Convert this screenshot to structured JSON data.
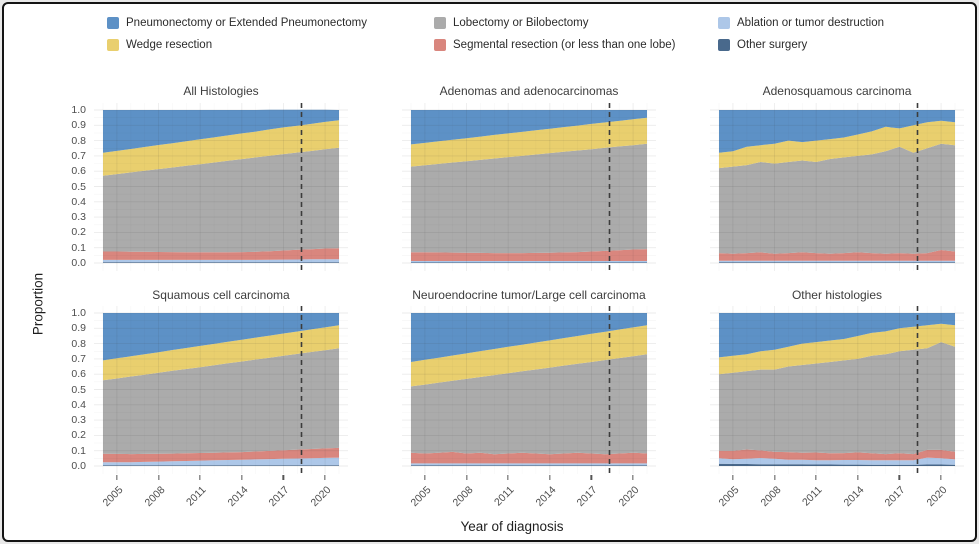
{
  "figure": {
    "background": "#ffffff",
    "border_color": "#141414"
  },
  "legend": {
    "items": [
      {
        "label": "Pneumonectomy or Extended Pneumonectomy",
        "color": "#5d91c6",
        "series": "pneumonectomy"
      },
      {
        "label": "Lobectomy or Bilobectomy",
        "color": "#ababab",
        "series": "lobectomy"
      },
      {
        "label": "Ablation or tumor destruction",
        "color": "#adc7e8",
        "series": "ablation"
      },
      {
        "label": "Wedge resection",
        "color": "#e9cf6e",
        "series": "wedge"
      },
      {
        "label": "Segmental resection (or less than one lobe)",
        "color": "#d9867e",
        "series": "segmental"
      },
      {
        "label": "Other surgery",
        "color": "#49698c",
        "series": "other_surgery"
      }
    ]
  },
  "axes": {
    "y_label": "Proportion",
    "x_label": "Year of diagnosis",
    "y_ticks": [
      "1.0",
      "0.9",
      "0.8",
      "0.7",
      "0.6",
      "0.5",
      "0.4",
      "0.3",
      "0.2",
      "0.1",
      "0.0"
    ],
    "x_ticks": [
      "2005",
      "2008",
      "2011",
      "2014",
      "2017",
      "2020"
    ]
  },
  "chart_data": {
    "type": "area",
    "stacked": true,
    "grid": true,
    "legend_position": "top",
    "ylim": [
      0,
      1
    ],
    "ylabel": "Proportion",
    "xlabel": "Year of diagnosis",
    "x": [
      2004,
      2005,
      2006,
      2007,
      2008,
      2009,
      2010,
      2011,
      2012,
      2013,
      2014,
      2015,
      2016,
      2017,
      2018,
      2019,
      2020,
      2021
    ],
    "x_tick_years": [
      2005,
      2008,
      2011,
      2014,
      2017,
      2020
    ],
    "dashed_line_year": 2018.3,
    "dashed_line_color": "#3c3c3c",
    "stack_order": [
      "other_surgery",
      "ablation",
      "segmental",
      "lobectomy",
      "wedge",
      "pneumonectomy"
    ],
    "series_labels": {
      "other_surgery": "Other surgery",
      "ablation": "Ablation or tumor destruction",
      "segmental": "Segmental resection (or less than one lobe)",
      "lobectomy": "Lobectomy or Bilobectomy",
      "wedge": "Wedge resection",
      "pneumonectomy": "Pneumonectomy or Extended Pneumonectomy"
    },
    "series_colors": {
      "other_surgery": "#49698c",
      "ablation": "#adc7e8",
      "segmental": "#d9867e",
      "lobectomy": "#ababab",
      "wedge": "#e9cf6e",
      "pneumonectomy": "#5d91c6"
    },
    "panels": [
      {
        "title": "All Histologies",
        "series": {
          "other_surgery": [
            0.005,
            0.005,
            0.005,
            0.005,
            0.005,
            0.005,
            0.005,
            0.005,
            0.005,
            0.005,
            0.005,
            0.005,
            0.005,
            0.005,
            0.005,
            0.005,
            0.005,
            0.005
          ],
          "ablation": [
            0.015,
            0.015,
            0.015,
            0.015,
            0.015,
            0.015,
            0.015,
            0.015,
            0.015,
            0.015,
            0.015,
            0.015,
            0.016,
            0.017,
            0.018,
            0.019,
            0.02,
            0.02
          ],
          "segmental": [
            0.055,
            0.055,
            0.054,
            0.053,
            0.052,
            0.051,
            0.05,
            0.05,
            0.05,
            0.05,
            0.051,
            0.053,
            0.056,
            0.06,
            0.063,
            0.066,
            0.07,
            0.072
          ],
          "lobectomy": [
            0.495,
            0.506,
            0.518,
            0.53,
            0.542,
            0.553,
            0.565,
            0.576,
            0.587,
            0.598,
            0.608,
            0.617,
            0.624,
            0.63,
            0.636,
            0.642,
            0.648,
            0.656
          ],
          "wedge": [
            0.15,
            0.152,
            0.153,
            0.155,
            0.157,
            0.159,
            0.161,
            0.163,
            0.164,
            0.166,
            0.168,
            0.169,
            0.172,
            0.174,
            0.175,
            0.177,
            0.179,
            0.18
          ],
          "pneumonectomy": [
            0.28,
            0.267,
            0.255,
            0.242,
            0.229,
            0.217,
            0.204,
            0.191,
            0.179,
            0.166,
            0.153,
            0.141,
            0.128,
            0.115,
            0.104,
            0.092,
            0.079,
            0.067
          ]
        }
      },
      {
        "title": "Adenomas and adenocarcinomas",
        "series": {
          "other_surgery": [
            0.003,
            0.003,
            0.003,
            0.003,
            0.003,
            0.003,
            0.003,
            0.003,
            0.003,
            0.003,
            0.003,
            0.003,
            0.003,
            0.003,
            0.003,
            0.003,
            0.003,
            0.003
          ],
          "ablation": [
            0.01,
            0.01,
            0.01,
            0.01,
            0.01,
            0.01,
            0.01,
            0.01,
            0.01,
            0.01,
            0.01,
            0.01,
            0.01,
            0.01,
            0.01,
            0.01,
            0.01,
            0.01
          ],
          "segmental": [
            0.057,
            0.057,
            0.056,
            0.055,
            0.054,
            0.053,
            0.052,
            0.052,
            0.052,
            0.053,
            0.054,
            0.056,
            0.058,
            0.062,
            0.066,
            0.07,
            0.075,
            0.078
          ],
          "lobectomy": [
            0.56,
            0.569,
            0.579,
            0.589,
            0.598,
            0.608,
            0.618,
            0.627,
            0.635,
            0.643,
            0.651,
            0.658,
            0.664,
            0.669,
            0.674,
            0.679,
            0.682,
            0.689
          ],
          "wedge": [
            0.145,
            0.146,
            0.148,
            0.149,
            0.151,
            0.152,
            0.154,
            0.155,
            0.157,
            0.159,
            0.16,
            0.161,
            0.163,
            0.165,
            0.166,
            0.167,
            0.17,
            0.17
          ],
          "pneumonectomy": [
            0.225,
            0.215,
            0.204,
            0.194,
            0.184,
            0.174,
            0.163,
            0.153,
            0.143,
            0.132,
            0.122,
            0.112,
            0.102,
            0.091,
            0.081,
            0.071,
            0.06,
            0.05
          ]
        }
      },
      {
        "title": "Adenosquamous carcinoma",
        "series": {
          "other_surgery": [
            0.005,
            0.005,
            0.005,
            0.005,
            0.005,
            0.005,
            0.005,
            0.005,
            0.005,
            0.005,
            0.005,
            0.005,
            0.005,
            0.005,
            0.005,
            0.005,
            0.005,
            0.005
          ],
          "ablation": [
            0.01,
            0.01,
            0.01,
            0.01,
            0.01,
            0.01,
            0.01,
            0.01,
            0.01,
            0.01,
            0.01,
            0.01,
            0.01,
            0.01,
            0.01,
            0.01,
            0.01,
            0.01
          ],
          "segmental": [
            0.05,
            0.045,
            0.05,
            0.055,
            0.045,
            0.05,
            0.055,
            0.05,
            0.045,
            0.05,
            0.055,
            0.05,
            0.045,
            0.05,
            0.045,
            0.05,
            0.07,
            0.06
          ],
          "lobectomy": [
            0.555,
            0.57,
            0.575,
            0.59,
            0.59,
            0.595,
            0.6,
            0.595,
            0.62,
            0.625,
            0.63,
            0.645,
            0.67,
            0.695,
            0.66,
            0.685,
            0.695,
            0.695
          ],
          "wedge": [
            0.1,
            0.1,
            0.12,
            0.11,
            0.13,
            0.14,
            0.12,
            0.14,
            0.13,
            0.13,
            0.14,
            0.15,
            0.16,
            0.12,
            0.18,
            0.17,
            0.15,
            0.15
          ],
          "pneumonectomy": [
            0.28,
            0.27,
            0.24,
            0.23,
            0.22,
            0.2,
            0.21,
            0.2,
            0.19,
            0.18,
            0.16,
            0.14,
            0.11,
            0.12,
            0.1,
            0.08,
            0.07,
            0.08
          ]
        }
      },
      {
        "title": "Squamous cell carcinoma",
        "series": {
          "other_surgery": [
            0.005,
            0.005,
            0.005,
            0.005,
            0.005,
            0.005,
            0.005,
            0.005,
            0.005,
            0.005,
            0.005,
            0.005,
            0.005,
            0.005,
            0.005,
            0.005,
            0.005,
            0.005
          ],
          "ablation": [
            0.02,
            0.02,
            0.02,
            0.022,
            0.024,
            0.026,
            0.028,
            0.03,
            0.032,
            0.034,
            0.036,
            0.038,
            0.04,
            0.042,
            0.044,
            0.046,
            0.048,
            0.05
          ],
          "segmental": [
            0.055,
            0.054,
            0.053,
            0.052,
            0.051,
            0.05,
            0.05,
            0.05,
            0.05,
            0.05,
            0.05,
            0.052,
            0.054,
            0.056,
            0.058,
            0.06,
            0.062,
            0.063
          ],
          "lobectomy": [
            0.48,
            0.493,
            0.507,
            0.518,
            0.529,
            0.541,
            0.551,
            0.561,
            0.572,
            0.582,
            0.592,
            0.601,
            0.609,
            0.617,
            0.626,
            0.634,
            0.642,
            0.652
          ],
          "wedge": [
            0.13,
            0.132,
            0.132,
            0.134,
            0.135,
            0.136,
            0.137,
            0.139,
            0.139,
            0.141,
            0.142,
            0.143,
            0.144,
            0.146,
            0.146,
            0.148,
            0.149,
            0.15
          ],
          "pneumonectomy": [
            0.31,
            0.296,
            0.283,
            0.269,
            0.256,
            0.242,
            0.229,
            0.215,
            0.202,
            0.188,
            0.175,
            0.161,
            0.148,
            0.134,
            0.121,
            0.107,
            0.094,
            0.08
          ]
        }
      },
      {
        "title": "Neuroendocrine tumor/Large cell carcinoma",
        "series": {
          "other_surgery": [
            0.005,
            0.005,
            0.005,
            0.005,
            0.005,
            0.005,
            0.005,
            0.005,
            0.005,
            0.005,
            0.005,
            0.005,
            0.005,
            0.005,
            0.005,
            0.005,
            0.005,
            0.005
          ],
          "ablation": [
            0.012,
            0.012,
            0.012,
            0.012,
            0.012,
            0.012,
            0.012,
            0.012,
            0.012,
            0.012,
            0.012,
            0.012,
            0.012,
            0.012,
            0.012,
            0.012,
            0.012,
            0.012
          ],
          "segmental": [
            0.07,
            0.065,
            0.07,
            0.075,
            0.065,
            0.07,
            0.06,
            0.065,
            0.07,
            0.065,
            0.06,
            0.065,
            0.07,
            0.065,
            0.06,
            0.065,
            0.07,
            0.065
          ],
          "lobectomy": [
            0.433,
            0.45,
            0.458,
            0.465,
            0.487,
            0.495,
            0.517,
            0.524,
            0.532,
            0.549,
            0.566,
            0.574,
            0.581,
            0.598,
            0.616,
            0.623,
            0.63,
            0.648
          ],
          "wedge": [
            0.16,
            0.162,
            0.163,
            0.165,
            0.167,
            0.169,
            0.171,
            0.173,
            0.174,
            0.176,
            0.178,
            0.18,
            0.182,
            0.184,
            0.185,
            0.187,
            0.189,
            0.19
          ],
          "pneumonectomy": [
            0.32,
            0.306,
            0.292,
            0.278,
            0.264,
            0.249,
            0.235,
            0.221,
            0.207,
            0.193,
            0.179,
            0.164,
            0.15,
            0.136,
            0.122,
            0.108,
            0.094,
            0.08
          ]
        }
      },
      {
        "title": "Other histologies",
        "series": {
          "other_surgery": [
            0.015,
            0.014,
            0.013,
            0.012,
            0.012,
            0.011,
            0.011,
            0.01,
            0.01,
            0.009,
            0.009,
            0.008,
            0.008,
            0.008,
            0.008,
            0.01,
            0.01,
            0.008
          ],
          "ablation": [
            0.035,
            0.03,
            0.035,
            0.04,
            0.035,
            0.03,
            0.03,
            0.028,
            0.028,
            0.03,
            0.03,
            0.03,
            0.03,
            0.03,
            0.03,
            0.045,
            0.04,
            0.035
          ],
          "segmental": [
            0.05,
            0.055,
            0.06,
            0.05,
            0.045,
            0.05,
            0.045,
            0.05,
            0.045,
            0.045,
            0.05,
            0.045,
            0.04,
            0.045,
            0.04,
            0.05,
            0.055,
            0.05
          ],
          "lobectomy": [
            0.5,
            0.511,
            0.512,
            0.528,
            0.538,
            0.559,
            0.574,
            0.582,
            0.597,
            0.606,
            0.611,
            0.637,
            0.652,
            0.667,
            0.682,
            0.665,
            0.705,
            0.687
          ],
          "wedge": [
            0.11,
            0.11,
            0.11,
            0.12,
            0.13,
            0.13,
            0.14,
            0.14,
            0.14,
            0.14,
            0.15,
            0.15,
            0.15,
            0.15,
            0.15,
            0.15,
            0.12,
            0.14
          ],
          "pneumonectomy": [
            0.29,
            0.28,
            0.27,
            0.25,
            0.24,
            0.22,
            0.2,
            0.19,
            0.18,
            0.17,
            0.15,
            0.13,
            0.12,
            0.1,
            0.09,
            0.08,
            0.07,
            0.08
          ]
        }
      }
    ]
  }
}
